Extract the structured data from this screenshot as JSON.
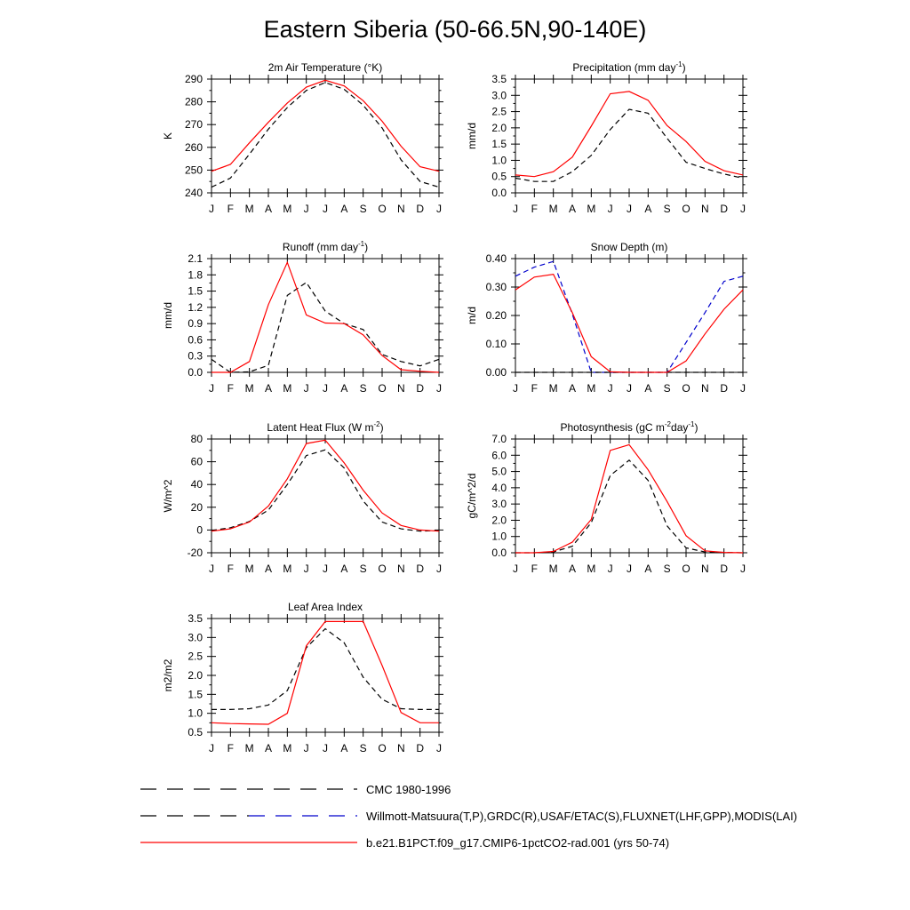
{
  "figure": {
    "title": "Eastern Siberia (50-66.5N,90-140E)"
  },
  "months": [
    "J",
    "F",
    "M",
    "A",
    "M",
    "J",
    "J",
    "A",
    "S",
    "O",
    "N",
    "D",
    "J"
  ],
  "legend": [
    {
      "label": "CMC 1980-1996",
      "segments": [
        {
          "color": "#000000",
          "dash": true
        }
      ]
    },
    {
      "label": "Willmott-Matsuura(T,P),GRDC(R),USAF/ETAC(S),FLUXNET(LHF,GPP),MODIS(LAI)",
      "segments": [
        {
          "color": "#000000",
          "dash": true
        },
        {
          "color": "#0000cc",
          "dash": true
        }
      ]
    },
    {
      "label": "b.e21.B1PCT.f09_g17.CMIP6-1pctCO2-rad.001 (yrs 50-74)",
      "segments": [
        {
          "color": "#ff0000",
          "dash": false
        }
      ]
    }
  ],
  "chart_data": [
    {
      "type": "line",
      "title": "2m Air Temperature (°K)",
      "ylabel": "K",
      "ylim": [
        240,
        290
      ],
      "yticks": [
        "240",
        "250",
        "260",
        "270",
        "280",
        "290"
      ],
      "categories": [
        "J",
        "F",
        "M",
        "A",
        "M",
        "J",
        "J",
        "A",
        "S",
        "O",
        "N",
        "D",
        "J"
      ],
      "series": [
        {
          "color": "#ff0000",
          "dash": false,
          "values": [
            249.5,
            252.5,
            262,
            271,
            279.5,
            286.5,
            289.5,
            287,
            280.5,
            271.5,
            260.5,
            251.5,
            249.5
          ]
        },
        {
          "color": "#000000",
          "dash": true,
          "values": [
            242.5,
            246.5,
            257,
            268,
            277.5,
            285,
            288.5,
            285.5,
            278.5,
            268.5,
            254.5,
            245,
            242.5
          ]
        }
      ]
    },
    {
      "type": "line",
      "title": "Precipitation (mm day-1)",
      "ylabel": "mm/d",
      "ylim": [
        0,
        3.5
      ],
      "yticks": [
        "0.0",
        "0.5",
        "1.0",
        "1.5",
        "2.0",
        "2.5",
        "3.0",
        "3.5"
      ],
      "categories": [
        "J",
        "F",
        "M",
        "A",
        "M",
        "J",
        "J",
        "A",
        "S",
        "O",
        "N",
        "D",
        "J"
      ],
      "series": [
        {
          "color": "#ff0000",
          "dash": false,
          "values": [
            0.55,
            0.5,
            0.65,
            1.1,
            2.05,
            3.05,
            3.12,
            2.85,
            2.07,
            1.58,
            0.97,
            0.68,
            0.55
          ]
        },
        {
          "color": "#000000",
          "dash": true,
          "values": [
            0.45,
            0.35,
            0.35,
            0.65,
            1.15,
            1.95,
            2.57,
            2.45,
            1.68,
            0.94,
            0.75,
            0.58,
            0.45
          ]
        }
      ]
    },
    {
      "type": "line",
      "title": "Runoff (mm day-1)",
      "ylabel": "mm/d",
      "ylim": [
        0,
        2.1
      ],
      "yticks": [
        "0.0",
        "0.3",
        "0.6",
        "0.9",
        "1.2",
        "1.5",
        "1.8",
        "2.1"
      ],
      "categories": [
        "J",
        "F",
        "M",
        "A",
        "M",
        "J",
        "J",
        "A",
        "S",
        "O",
        "N",
        "D",
        "J"
      ],
      "series": [
        {
          "color": "#ff0000",
          "dash": false,
          "values": [
            0.0,
            0.0,
            0.2,
            1.25,
            2.03,
            1.06,
            0.91,
            0.9,
            0.69,
            0.31,
            0.05,
            0.02,
            0.0
          ]
        },
        {
          "color": "#000000",
          "dash": true,
          "values": [
            0.24,
            0.0,
            0.01,
            0.13,
            1.42,
            1.66,
            1.13,
            0.9,
            0.79,
            0.33,
            0.2,
            0.12,
            0.24
          ]
        }
      ]
    },
    {
      "type": "line",
      "title": "Snow Depth (m)",
      "ylabel": "m/d",
      "ylim": [
        0,
        0.4
      ],
      "yticks": [
        "0.00",
        "0.10",
        "0.20",
        "0.30",
        "0.40"
      ],
      "categories": [
        "J",
        "F",
        "M",
        "A",
        "M",
        "J",
        "J",
        "A",
        "S",
        "O",
        "N",
        "D",
        "J"
      ],
      "series": [
        {
          "color": "#ff0000",
          "dash": false,
          "values": [
            0.29,
            0.335,
            0.345,
            0.21,
            0.055,
            0.002,
            0.0,
            0.0,
            0.0,
            0.04,
            0.135,
            0.222,
            0.29
          ]
        },
        {
          "color": "#0000cc",
          "dash": true,
          "values": [
            0.338,
            0.37,
            0.39,
            0.205,
            0.0,
            0.0,
            0.0,
            0.0,
            0.0,
            0.105,
            0.21,
            0.32,
            0.338
          ]
        },
        {
          "color": "#000000",
          "dash": true,
          "values": [
            0.0,
            0.0,
            0.0,
            0.0,
            0.0,
            0.0,
            0.0,
            0.0,
            0.0,
            0.0,
            0.0,
            0.0,
            0.0
          ]
        }
      ]
    },
    {
      "type": "line",
      "title": "Latent Heat Flux (W m-2)",
      "ylabel": "W/m^2",
      "ylim": [
        -20,
        80
      ],
      "yticks": [
        "-20",
        "0",
        "20",
        "40",
        "60",
        "80"
      ],
      "categories": [
        "J",
        "F",
        "M",
        "A",
        "M",
        "J",
        "J",
        "A",
        "S",
        "O",
        "N",
        "D",
        "J"
      ],
      "series": [
        {
          "color": "#ff0000",
          "dash": false,
          "values": [
            -1,
            1,
            7,
            21,
            45,
            76,
            79,
            59,
            35,
            15,
            4,
            0,
            -1
          ]
        },
        {
          "color": "#000000",
          "dash": true,
          "values": [
            -0.5,
            2,
            7.5,
            17.5,
            40,
            65.5,
            70.5,
            54.5,
            25.5,
            7,
            1,
            -1,
            -0.5
          ]
        }
      ]
    },
    {
      "type": "line",
      "title": "Photosynthesis (gC m-2day-1)",
      "ylabel": "gC/m^2/d",
      "ylim": [
        0,
        7
      ],
      "yticks": [
        "0.0",
        "1.0",
        "2.0",
        "3.0",
        "4.0",
        "5.0",
        "6.0",
        "7.0"
      ],
      "categories": [
        "J",
        "F",
        "M",
        "A",
        "M",
        "J",
        "J",
        "A",
        "S",
        "O",
        "N",
        "D",
        "J"
      ],
      "series": [
        {
          "color": "#ff0000",
          "dash": false,
          "values": [
            0.0,
            0.0,
            0.08,
            0.65,
            2.05,
            6.3,
            6.65,
            5.1,
            3.15,
            1.05,
            0.12,
            0.02,
            0.0
          ]
        },
        {
          "color": "#000000",
          "dash": true,
          "values": [
            0.0,
            0.0,
            0.05,
            0.4,
            1.85,
            4.75,
            5.7,
            4.45,
            1.65,
            0.3,
            0.05,
            0.02,
            0.0
          ]
        }
      ]
    },
    {
      "type": "line",
      "title": "Leaf Area Index",
      "ylabel": "m2/m2",
      "ylim": [
        0.5,
        3.5
      ],
      "yticks": [
        "0.5",
        "1.0",
        "1.5",
        "2.0",
        "2.5",
        "3.0",
        "3.5"
      ],
      "categories": [
        "J",
        "F",
        "M",
        "A",
        "M",
        "J",
        "J",
        "A",
        "S",
        "O",
        "N",
        "D",
        "J"
      ],
      "series": [
        {
          "color": "#ff0000",
          "dash": false,
          "values": [
            0.75,
            0.73,
            0.72,
            0.71,
            1.0,
            2.78,
            3.42,
            3.42,
            3.42,
            2.26,
            1.02,
            0.75,
            0.75
          ]
        },
        {
          "color": "#000000",
          "dash": true,
          "values": [
            1.1,
            1.1,
            1.12,
            1.22,
            1.6,
            2.73,
            3.23,
            2.86,
            1.95,
            1.37,
            1.12,
            1.1,
            1.1
          ]
        }
      ]
    }
  ]
}
